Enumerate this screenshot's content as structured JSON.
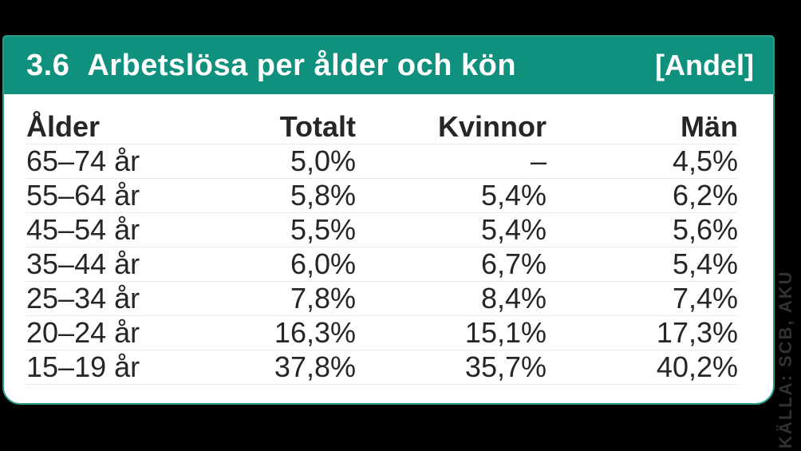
{
  "colors": {
    "accent_teal": "#0F917E",
    "border_teal": "#2B9C88",
    "background_black": "#000000",
    "card_white": "#FFFFFF",
    "header_text_white": "#FFFFFF",
    "text_dark": "#262626",
    "divider_gray": "#E9E9E9",
    "source_gray": "#313131"
  },
  "header": {
    "number": "3.6",
    "title": "Arbetslösa per ålder och kön",
    "unit": "[Andel]"
  },
  "table": {
    "columns": [
      "Ålder",
      "Totalt",
      "Kvinnor",
      "Män"
    ],
    "rows": [
      [
        "65–74 år",
        "5,0%",
        "–",
        "4,5%"
      ],
      [
        "55–64 år",
        "5,8%",
        "5,4%",
        "6,2%"
      ],
      [
        "45–54 år",
        "5,5%",
        "5,4%",
        "5,6%"
      ],
      [
        "35–44 år",
        "6,0%",
        "6,7%",
        "5,4%"
      ],
      [
        "25–34 år",
        "7,8%",
        "8,4%",
        "7,4%"
      ],
      [
        "20–24 år",
        "16,3%",
        "15,1%",
        "17,3%"
      ],
      [
        "15–19 år",
        "37,8%",
        "35,7%",
        "40,2%"
      ]
    ]
  },
  "source": {
    "label": "KÄLLA: SCB, AKU"
  },
  "chart_data": {
    "type": "table",
    "title": "3.6 Arbetslösa per ålder och kön",
    "unit_note": "[Andel]",
    "columns": [
      "Ålder",
      "Totalt",
      "Kvinnor",
      "Män"
    ],
    "categories": [
      "65–74 år",
      "55–64 år",
      "45–54 år",
      "35–44 år",
      "25–34 år",
      "20–24 år",
      "15–19 år"
    ],
    "series": [
      {
        "name": "Totalt",
        "values": [
          5.0,
          5.8,
          5.5,
          6.0,
          7.8,
          16.3,
          37.8
        ]
      },
      {
        "name": "Kvinnor",
        "values": [
          null,
          5.4,
          5.4,
          6.7,
          8.4,
          15.1,
          35.7
        ]
      },
      {
        "name": "Män",
        "values": [
          4.5,
          6.2,
          5.6,
          5.4,
          7.4,
          17.3,
          40.2
        ]
      }
    ],
    "value_unit": "percent",
    "value_format": "comma decimal separator",
    "missing_value_marker": "–",
    "source": "KÄLLA: SCB, AKU"
  }
}
